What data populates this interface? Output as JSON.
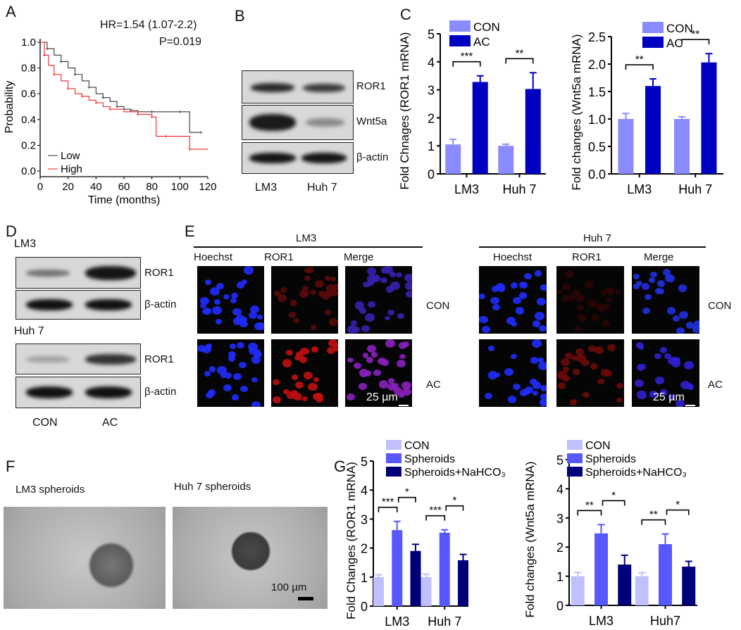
{
  "panels": {
    "A": {
      "label": "A",
      "hr": "HR=1.54 (1.07-2.2)",
      "p": "P=0.019"
    },
    "B": {
      "label": "B",
      "rows": [
        "ROR1",
        "Wnt5a",
        "β-actin"
      ],
      "cols": [
        "LM3",
        "Huh 7"
      ]
    },
    "C": {
      "label": "C"
    },
    "D": {
      "label": "D",
      "group1": "LM3",
      "group2": "Huh 7",
      "rows": [
        "ROR1",
        "β-actin"
      ],
      "cols": [
        "CON",
        "AC"
      ]
    },
    "E": {
      "label": "E",
      "group1": "LM3",
      "group2": "Huh 7",
      "channels": [
        "Hoechst",
        "ROR1",
        "Merge"
      ],
      "rows": [
        "CON",
        "AC"
      ],
      "scale": "25 µm"
    },
    "F": {
      "label": "F",
      "img1": "LM3 spheroids",
      "img2": "Huh 7 spheroids",
      "scale": "100 µm"
    },
    "G": {
      "label": "G"
    }
  },
  "colors": {
    "con_c": "#8b8bff",
    "ac": "#0000c0",
    "con_g": "#c0c0ff",
    "sph": "#5858ff",
    "nahco3": "#00007a",
    "low": "#333333",
    "high": "#ee2222"
  },
  "chart_data": [
    {
      "id": "km",
      "type": "line",
      "xlabel": "Time (months)",
      "ylabel": "Probability",
      "xlim": [
        0,
        120
      ],
      "ylim": [
        0,
        1
      ],
      "xticks": [
        0,
        20,
        40,
        60,
        80,
        100,
        120
      ],
      "yticks": [
        "0.0",
        "0.2",
        "0.4",
        "0.6",
        "0.8",
        "1.0"
      ],
      "legend": [
        "Low",
        "High"
      ],
      "legend_position": "bottom-left",
      "series": [
        {
          "name": "Low",
          "x": [
            0,
            5,
            10,
            15,
            20,
            25,
            30,
            35,
            40,
            45,
            50,
            55,
            60,
            65,
            70,
            80,
            90,
            100,
            107,
            115
          ],
          "y": [
            1.0,
            0.95,
            0.9,
            0.85,
            0.8,
            0.75,
            0.7,
            0.65,
            0.6,
            0.57,
            0.54,
            0.5,
            0.48,
            0.47,
            0.46,
            0.46,
            0.46,
            0.46,
            0.3,
            0.3
          ]
        },
        {
          "name": "High",
          "x": [
            0,
            3,
            6,
            10,
            15,
            20,
            25,
            30,
            35,
            40,
            45,
            50,
            60,
            70,
            75,
            80,
            83,
            90,
            100,
            107,
            120
          ],
          "y": [
            1.0,
            0.9,
            0.82,
            0.75,
            0.7,
            0.64,
            0.6,
            0.58,
            0.55,
            0.53,
            0.5,
            0.48,
            0.46,
            0.44,
            0.44,
            0.42,
            0.27,
            0.27,
            0.27,
            0.17,
            0.17
          ]
        }
      ]
    },
    {
      "id": "c1",
      "type": "bar",
      "ylabel": "Fold Chnages (ROR1 mRNA)",
      "ylim": [
        0,
        5
      ],
      "yticks": [
        "0",
        "1",
        "2",
        "3",
        "4",
        "5"
      ],
      "categories": [
        "LM3",
        "Huh 7"
      ],
      "legend": [
        "CON",
        "AC"
      ],
      "series": [
        {
          "name": "CON",
          "values": [
            1.05,
            1.0
          ],
          "errors": [
            0.18,
            0.06
          ]
        },
        {
          "name": "AC",
          "values": [
            3.28,
            3.03
          ],
          "errors": [
            0.22,
            0.58
          ]
        }
      ],
      "annotations": [
        {
          "cat": 0,
          "from": 0,
          "to": 1,
          "text": "***"
        },
        {
          "cat": 1,
          "from": 0,
          "to": 1,
          "text": "**"
        }
      ]
    },
    {
      "id": "c2",
      "type": "bar",
      "ylabel": "Fold changes (Wnt5a mRNA)",
      "ylim": [
        0,
        2.5
      ],
      "yticks": [
        "0.0",
        "0.5",
        "1.0",
        "1.5",
        "2.0",
        "2.5"
      ],
      "categories": [
        "LM3",
        "Huh 7"
      ],
      "legend": [
        "CON",
        "AC"
      ],
      "series": [
        {
          "name": "CON",
          "values": [
            1.0,
            1.0
          ],
          "errors": [
            0.1,
            0.04
          ]
        },
        {
          "name": "AC",
          "values": [
            1.6,
            2.03
          ],
          "errors": [
            0.13,
            0.16
          ]
        }
      ],
      "annotations": [
        {
          "cat": 0,
          "from": 0,
          "to": 1,
          "text": "**"
        },
        {
          "cat": 1,
          "from": 0,
          "to": 1,
          "text": "**"
        }
      ]
    },
    {
      "id": "g1",
      "type": "bar",
      "ylabel": "Fold Changes (ROR1 mRNA)",
      "ylim": [
        0,
        5
      ],
      "yticks": [
        "0",
        "1",
        "2",
        "3",
        "4",
        "5"
      ],
      "categories": [
        "LM3",
        "Huh 7"
      ],
      "legend": [
        "CON",
        "Spheroids",
        "Spheroids+NaHCO₃"
      ],
      "series": [
        {
          "name": "CON",
          "values": [
            1.0,
            1.0
          ],
          "errors": [
            0.08,
            0.1
          ]
        },
        {
          "name": "Spheroids",
          "values": [
            2.62,
            2.53
          ],
          "errors": [
            0.3,
            0.1
          ]
        },
        {
          "name": "Spheroids+NaHCO₃",
          "values": [
            1.9,
            1.58
          ],
          "errors": [
            0.23,
            0.2
          ]
        }
      ],
      "annotations": [
        {
          "cat": 0,
          "from": 0,
          "to": 1,
          "text": "***"
        },
        {
          "cat": 0,
          "from": 1,
          "to": 2,
          "text": "*"
        },
        {
          "cat": 1,
          "from": 0,
          "to": 1,
          "text": "***"
        },
        {
          "cat": 1,
          "from": 1,
          "to": 2,
          "text": "*"
        }
      ]
    },
    {
      "id": "g2",
      "type": "bar",
      "ylabel": "Fold changes (Wnt5a mRNA)",
      "ylim": [
        0,
        5
      ],
      "yticks": [
        "0",
        "1",
        "2",
        "3",
        "4",
        "5"
      ],
      "categories": [
        "LM3",
        "Huh7"
      ],
      "legend": [
        "CON",
        "Spheroids",
        "Spheroids+NaHCO₃"
      ],
      "series": [
        {
          "name": "CON",
          "values": [
            1.0,
            1.0
          ],
          "errors": [
            0.13,
            0.12
          ]
        },
        {
          "name": "Spheroids",
          "values": [
            2.47,
            2.1
          ],
          "errors": [
            0.3,
            0.35
          ]
        },
        {
          "name": "Spheroids+NaHCO₃",
          "values": [
            1.4,
            1.33
          ],
          "errors": [
            0.32,
            0.18
          ]
        }
      ],
      "annotations": [
        {
          "cat": 0,
          "from": 0,
          "to": 1,
          "text": "**"
        },
        {
          "cat": 0,
          "from": 1,
          "to": 2,
          "text": "*"
        },
        {
          "cat": 1,
          "from": 0,
          "to": 1,
          "text": "**"
        },
        {
          "cat": 1,
          "from": 1,
          "to": 2,
          "text": "*"
        }
      ]
    }
  ]
}
